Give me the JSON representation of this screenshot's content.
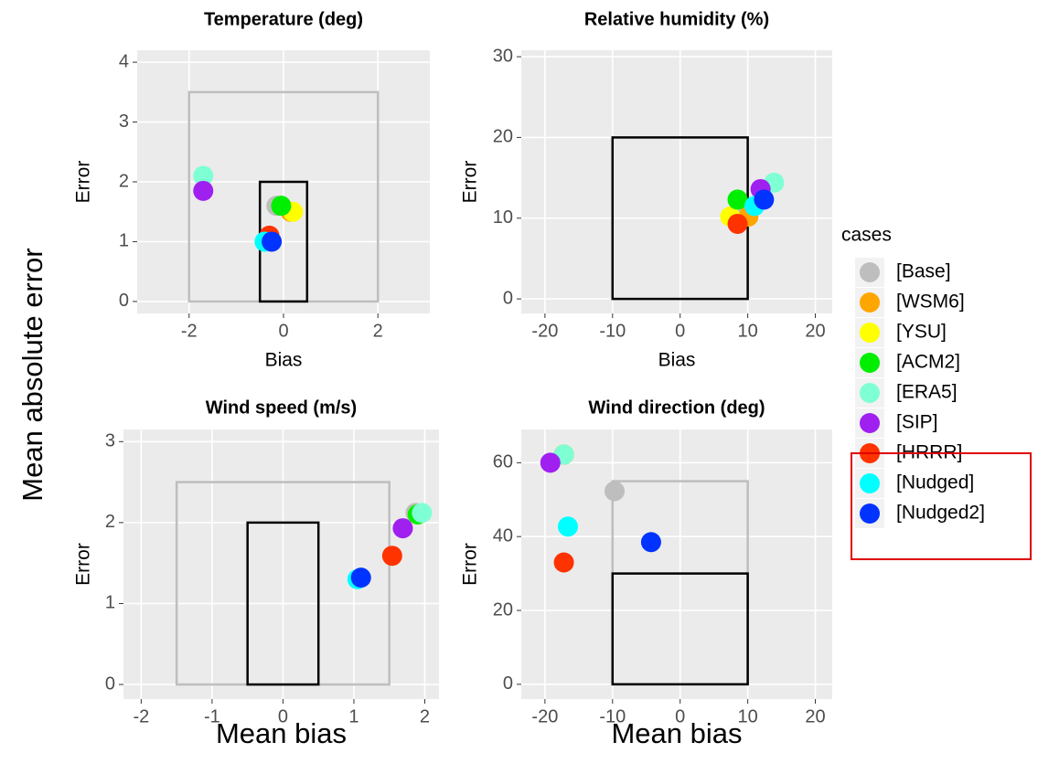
{
  "ylabel": "Mean absolute error",
  "legend": {
    "title": "cases",
    "names": [
      "[Base]",
      "[WSM6]",
      "[YSU]",
      "[ACM2]",
      "[ERA5]",
      "[SIP]",
      "[HRRR]",
      "[Nudged]",
      "[Nudged2]"
    ],
    "colors": [
      "#bebebe",
      "#ffa500",
      "#ffff00",
      "#00ee00",
      "#7fffd4",
      "#a020f0",
      "#ff3300",
      "#00ffff",
      "#0033ff"
    ]
  },
  "chart_data": [
    {
      "type": "scatter",
      "title": "Temperature (deg)",
      "xlabel": "Bias",
      "ylabel": "Error",
      "x": [
        -0.15,
        0.15,
        0.2,
        -0.05,
        -1.7,
        -1.7,
        -0.3,
        -0.4,
        -0.25
      ],
      "values": [
        1.6,
        1.5,
        1.5,
        1.6,
        2.1,
        1.85,
        1.1,
        1.0,
        1.0
      ],
      "xlim": [
        -3.1,
        3.1
      ],
      "ylim": [
        -0.2,
        4.2
      ],
      "xticks": [
        -2,
        0,
        2
      ],
      "yticks": [
        0,
        1,
        2,
        3,
        4
      ],
      "grid": true,
      "boxes": [
        {
          "xlim": [
            -2,
            2
          ],
          "ylim": [
            0,
            3.5
          ],
          "color": "#bebebe"
        },
        {
          "xlim": [
            -0.5,
            0.5
          ],
          "ylim": [
            0,
            2
          ],
          "color": "#000000"
        }
      ]
    },
    {
      "type": "scatter",
      "title": "Relative humidity (%)",
      "xlabel": "Bias",
      "ylabel": "Error",
      "x": [
        10,
        10.1,
        7.4,
        8.5,
        13.9,
        11.9,
        8.5,
        11,
        12.4
      ],
      "values": [
        11,
        10.2,
        10.2,
        12.3,
        14.4,
        13.6,
        9.3,
        11.5,
        12.3
      ],
      "xlim": [
        -23.5,
        22.5
      ],
      "ylim": [
        -1.8,
        30.8
      ],
      "xticks": [
        -20,
        -10,
        0,
        10,
        20
      ],
      "yticks": [
        0,
        10,
        20,
        30
      ],
      "grid": true,
      "boxes": [
        {
          "xlim": [
            -10,
            10
          ],
          "ylim": [
            0,
            20
          ],
          "color": "#000000"
        }
      ]
    },
    {
      "type": "scatter",
      "title": "Wind speed (m/s)",
      "xlabel": "Mean bias",
      "ylabel": "Error",
      "x": [
        1.87,
        1.9,
        1.9,
        1.9,
        1.96,
        1.69,
        1.54,
        1.05,
        1.1
      ],
      "values": [
        2.12,
        2.1,
        2.1,
        2.1,
        2.12,
        1.93,
        1.59,
        1.3,
        1.32
      ],
      "xlim": [
        -2.25,
        2.2
      ],
      "ylim": [
        -0.18,
        3.15
      ],
      "xticks": [
        -2,
        -1,
        0,
        1,
        2
      ],
      "yticks": [
        0,
        1,
        2,
        3
      ],
      "grid": true,
      "boxes": [
        {
          "xlim": [
            -1.5,
            1.5
          ],
          "ylim": [
            0,
            2.5
          ],
          "color": "#bebebe"
        },
        {
          "xlim": [
            -0.5,
            0.5
          ],
          "ylim": [
            0,
            2
          ],
          "color": "#000000"
        }
      ]
    },
    {
      "type": "scatter",
      "title": "Wind direction (deg)",
      "xlabel": "Mean bias",
      "ylabel": "Error",
      "x": [
        -9.7,
        -17.2,
        -17.2,
        -17.2,
        -17.2,
        -19.2,
        -17.2,
        -16.6,
        -4.3
      ],
      "values": [
        52.3,
        62.2,
        62.2,
        62.2,
        62.2,
        60,
        33,
        42.7,
        38.5
      ],
      "xlim": [
        -23.5,
        22.5
      ],
      "ylim": [
        -4,
        69
      ],
      "xticks": [
        -20,
        -10,
        0,
        10,
        20
      ],
      "yticks": [
        0,
        20,
        40,
        60
      ],
      "grid": true,
      "boxes": [
        {
          "xlim": [
            -10,
            10
          ],
          "ylim": [
            0,
            55
          ],
          "color": "#bebebe"
        },
        {
          "xlim": [
            -10,
            10
          ],
          "ylim": [
            0,
            30
          ],
          "color": "#000000"
        }
      ]
    }
  ]
}
